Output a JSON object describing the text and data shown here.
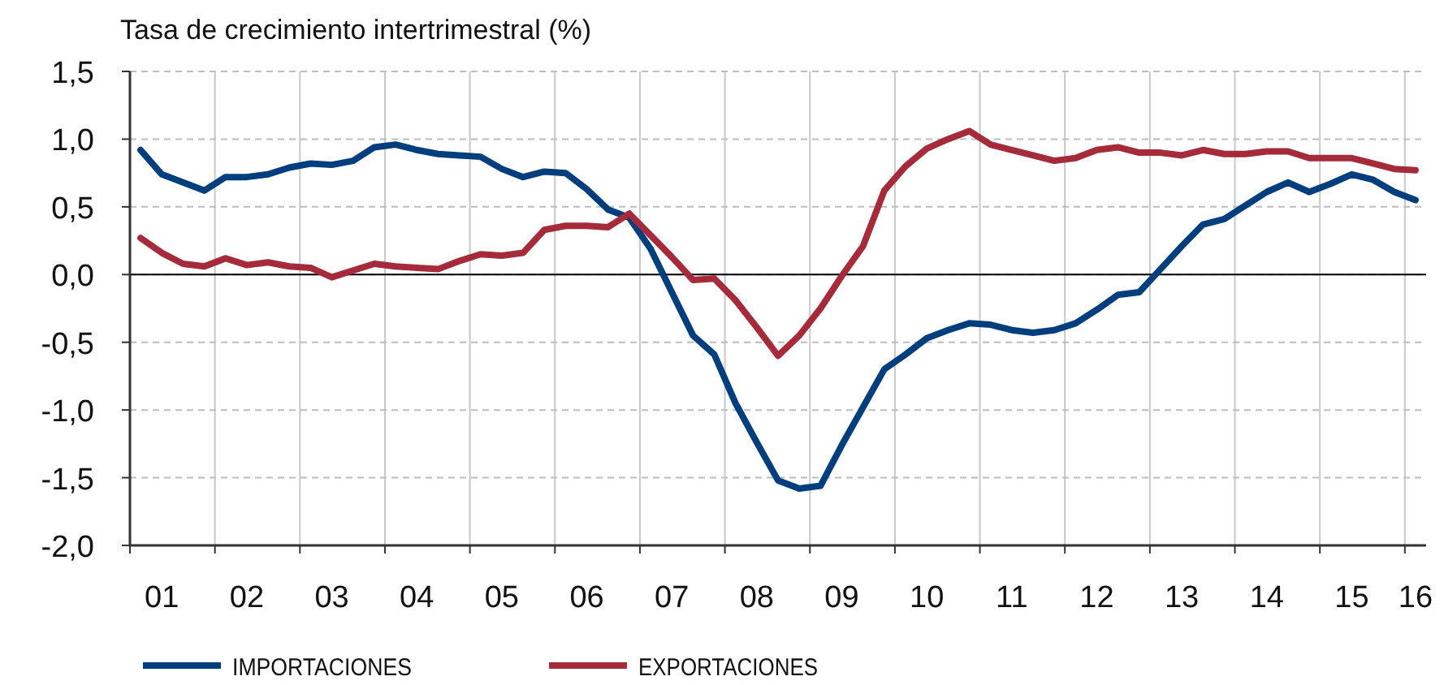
{
  "chart_data": {
    "type": "line",
    "ylabel": "Tasa de crecimiento intertrimestral (%)",
    "categories": [
      null,
      "01",
      null,
      null,
      null,
      "02",
      null,
      null,
      null,
      "03",
      null,
      null,
      null,
      "04",
      null,
      null,
      null,
      "05",
      null,
      null,
      null,
      "06",
      null,
      null,
      null,
      "07",
      null,
      null,
      null,
      "08",
      null,
      null,
      null,
      "09",
      null,
      null,
      null,
      "10",
      null,
      null,
      null,
      "11",
      null,
      null,
      null,
      "12",
      null,
      null,
      null,
      "13",
      null,
      null,
      null,
      "14",
      null,
      null,
      null,
      "15",
      null,
      null,
      "16"
    ],
    "series": [
      {
        "name": "IMPORTACIONES",
        "color": "#003e7e",
        "values": [
          0.92,
          0.74,
          0.68,
          0.62,
          0.72,
          0.72,
          0.74,
          0.79,
          0.82,
          0.81,
          0.84,
          0.94,
          0.96,
          0.92,
          0.89,
          0.88,
          0.87,
          0.78,
          0.72,
          0.76,
          0.75,
          0.63,
          0.48,
          0.42,
          0.19,
          -0.13,
          -0.45,
          -0.59,
          -0.95,
          -1.24,
          -1.52,
          -1.58,
          -1.56,
          -1.26,
          -0.98,
          -0.7,
          -0.59,
          -0.47,
          -0.41,
          -0.36,
          -0.37,
          -0.41,
          -0.43,
          -0.41,
          -0.36,
          -0.26,
          -0.15,
          -0.13,
          0.04,
          0.21,
          0.37,
          0.41,
          0.51,
          0.61,
          0.68,
          0.61,
          0.67,
          0.74,
          0.7,
          0.61,
          0.55
        ]
      },
      {
        "name": "EXPORTACIONES",
        "color": "#a52a3a",
        "values": [
          0.27,
          0.16,
          0.08,
          0.06,
          0.12,
          0.07,
          0.09,
          0.06,
          0.05,
          -0.02,
          0.03,
          0.08,
          0.06,
          0.05,
          0.04,
          0.1,
          0.15,
          0.14,
          0.16,
          0.33,
          0.36,
          0.36,
          0.35,
          0.45,
          0.29,
          0.13,
          -0.04,
          -0.03,
          -0.19,
          -0.39,
          -0.6,
          -0.45,
          -0.25,
          -0.01,
          0.21,
          0.62,
          0.8,
          0.93,
          1.0,
          1.06,
          0.96,
          0.92,
          0.88,
          0.84,
          0.86,
          0.92,
          0.94,
          0.9,
          0.9,
          0.88,
          0.92,
          0.89,
          0.89,
          0.91,
          0.91,
          0.86,
          0.86,
          0.86,
          0.82,
          0.78,
          0.77
        ]
      }
    ],
    "ylim": [
      -2,
      1.5
    ],
    "yticks": [
      {
        "value": -2,
        "label": "-2,0"
      },
      {
        "value": -1.5,
        "label": "-1,5"
      },
      {
        "value": -1,
        "label": "-1,0"
      },
      {
        "value": -0.5,
        "label": "-0,5"
      },
      {
        "value": 0,
        "label": "0,0"
      },
      {
        "value": 0.5,
        "label": "0,5"
      },
      {
        "value": 1,
        "label": "1,0"
      },
      {
        "value": 1.5,
        "label": "1,5"
      }
    ],
    "ref_lines": [
      {
        "axis": "y",
        "value": 0,
        "color": "#000000"
      }
    ],
    "grid": true,
    "legend": "bottom",
    "marker": "none",
    "line_style": "solid"
  }
}
